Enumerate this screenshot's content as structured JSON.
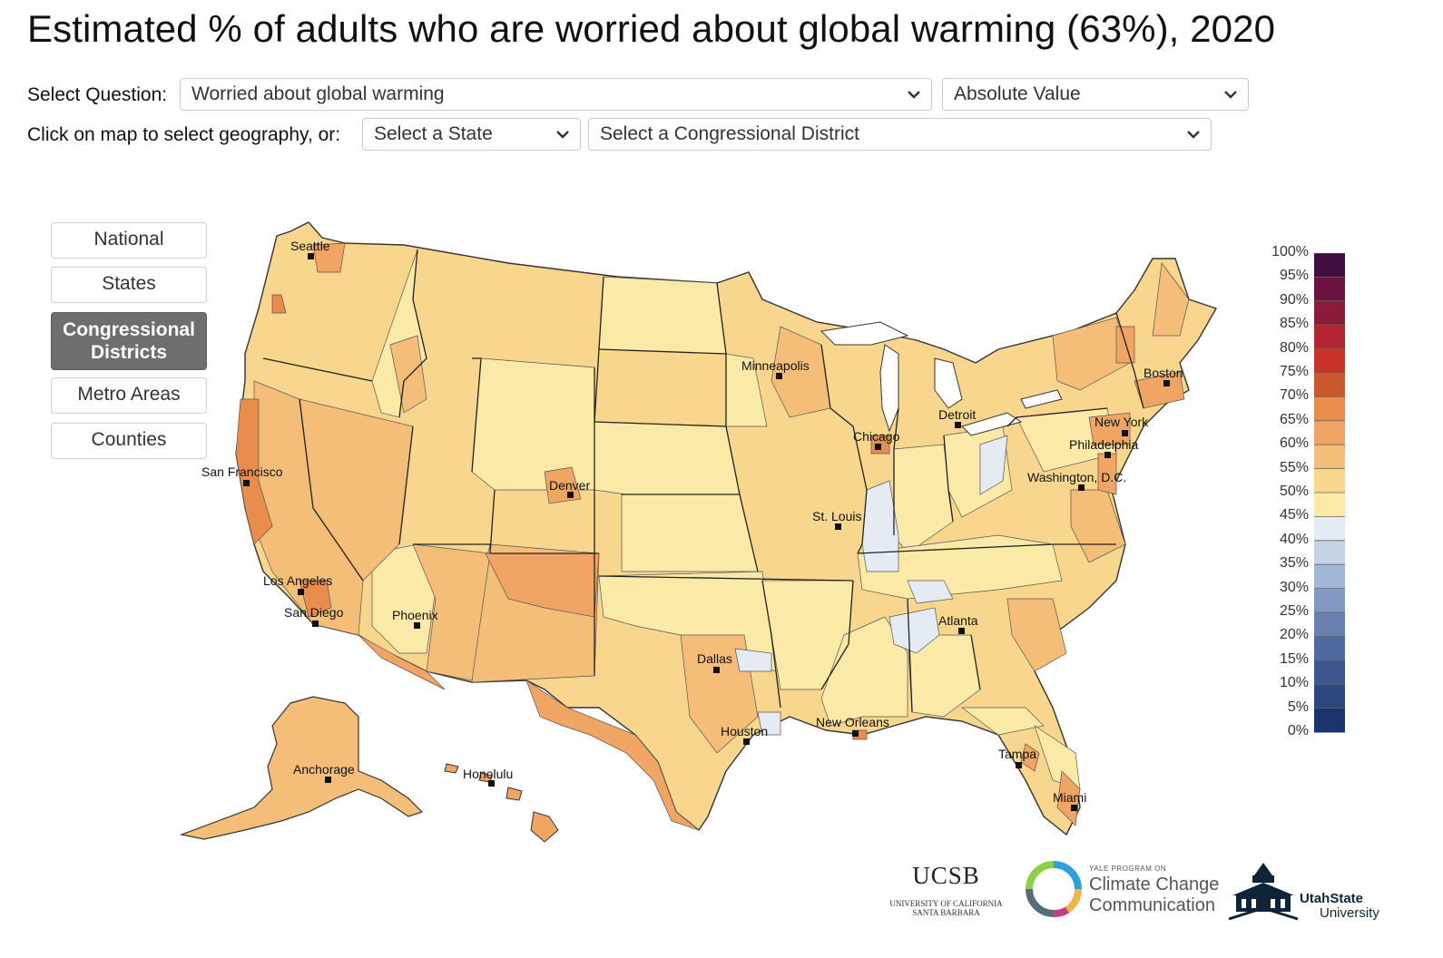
{
  "title": "Estimated % of adults who are worried about global warming (63%), 2020",
  "controls": {
    "question_label": "Select Question:",
    "question_value": "Worried about global warming",
    "mode_value": "Absolute Value",
    "geo_label": "Click on map to select geography, or:",
    "state_placeholder": "Select a State",
    "district_placeholder": "Select a Congressional District"
  },
  "geography_buttons": [
    {
      "label": "National",
      "active": false
    },
    {
      "label": "States",
      "active": false
    },
    {
      "label": "Congressional Districts",
      "active": true
    },
    {
      "label": "Metro Areas",
      "active": false
    },
    {
      "label": "Counties",
      "active": false
    }
  ],
  "cities": [
    "Seattle",
    "San Francisco",
    "Los Angeles",
    "San Diego",
    "Phoenix",
    "Denver",
    "Dallas",
    "Houston",
    "Minneapolis",
    "Chicago",
    "St. Louis",
    "Detroit",
    "New Orleans",
    "Atlanta",
    "Tampa",
    "Miami",
    "Boston",
    "New York",
    "Philadelphia",
    "Washington, D.C.",
    "Anchorage",
    "Honolulu"
  ],
  "legend": {
    "labels": [
      "100%",
      "95%",
      "90%",
      "85%",
      "80%",
      "75%",
      "70%",
      "65%",
      "60%",
      "55%",
      "50%",
      "45%",
      "40%",
      "35%",
      "30%",
      "25%",
      "20%",
      "15%",
      "10%",
      "5%",
      "0%"
    ],
    "colors": [
      "#3f0d3e",
      "#6b1340",
      "#8e1a3a",
      "#b32330",
      "#c9342a",
      "#c9582c",
      "#e98c4c",
      "#f0a565",
      "#f4bd78",
      "#f8d68e",
      "#fbe9a8",
      "#e4ebf2",
      "#c4d2e6",
      "#a2b6d6",
      "#8299c4",
      "#6780b0",
      "#4f6aa0",
      "#3c578f",
      "#2c467f",
      "#1c346e",
      "#0e235c"
    ]
  },
  "logos": {
    "ucsb_main": "UCSB",
    "ucsb_sub1": "UNIVERSITY OF CALIFORNIA",
    "ucsb_sub2": "SANTA BARBARA",
    "yale_small": "YALE PROGRAM ON",
    "yale_line1": "Climate Change",
    "yale_line2": "Communication",
    "usu_line1": "UtahState",
    "usu_line2": "University"
  },
  "colors": {
    "light_yellow": "#fbe9a8",
    "mid_yellow": "#f8d68e",
    "light_orange": "#f4bd78",
    "orange": "#f0a565",
    "dark_orange": "#e98c4c",
    "light_blue": "#e4ebf2"
  }
}
